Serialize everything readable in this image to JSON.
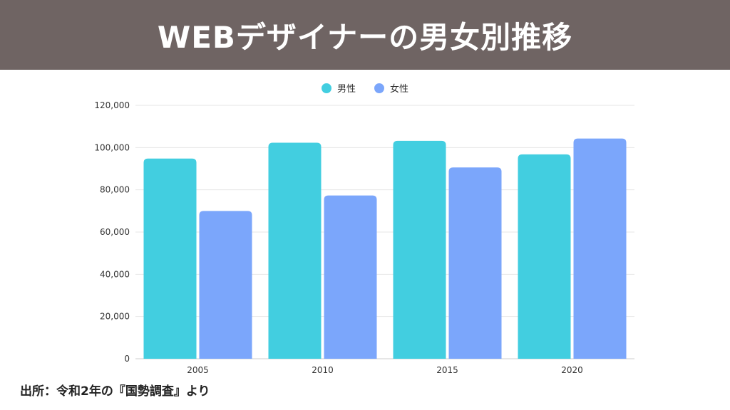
{
  "title": "WEBデザイナーの男女別推移",
  "source": "出所：令和2年の『国勢調査』より",
  "chart_data": {
    "type": "bar",
    "categories": [
      "2005",
      "2010",
      "2015",
      "2020"
    ],
    "series": [
      {
        "name": "男性",
        "color": "#42cee0",
        "values": [
          94800,
          102300,
          103200,
          96800
        ]
      },
      {
        "name": "女性",
        "color": "#7ba6fb",
        "values": [
          70000,
          77300,
          90600,
          104300
        ]
      }
    ],
    "ylim": [
      0,
      120000
    ],
    "yticks": [
      0,
      20000,
      40000,
      60000,
      80000,
      100000,
      120000
    ],
    "ytick_labels": [
      "0",
      "20,000",
      "40,000",
      "60,000",
      "80,000",
      "100,000",
      "120,000"
    ],
    "grid": true,
    "legend_position": "top-center"
  }
}
